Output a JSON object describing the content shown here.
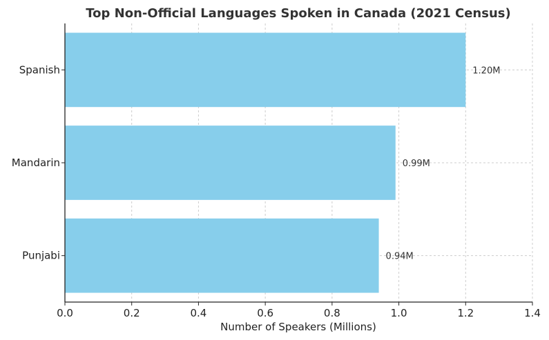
{
  "chart_data": {
    "type": "bar",
    "orientation": "horizontal",
    "title": "Top Non-Official Languages Spoken in Canada (2021 Census)",
    "xlabel": "Number of Speakers (Millions)",
    "ylabel": "",
    "categories": [
      "Spanish",
      "Mandarin",
      "Punjabi"
    ],
    "values": [
      1.2,
      0.99,
      0.94
    ],
    "data_labels": [
      "1.20M",
      "0.99M",
      "0.94M"
    ],
    "xlim": [
      0,
      1.4
    ],
    "xticks": [
      "0.0",
      "0.2",
      "0.4",
      "0.6",
      "0.8",
      "1.0",
      "1.2",
      "1.4"
    ],
    "grid": true,
    "bar_color": "#87CEEB"
  }
}
